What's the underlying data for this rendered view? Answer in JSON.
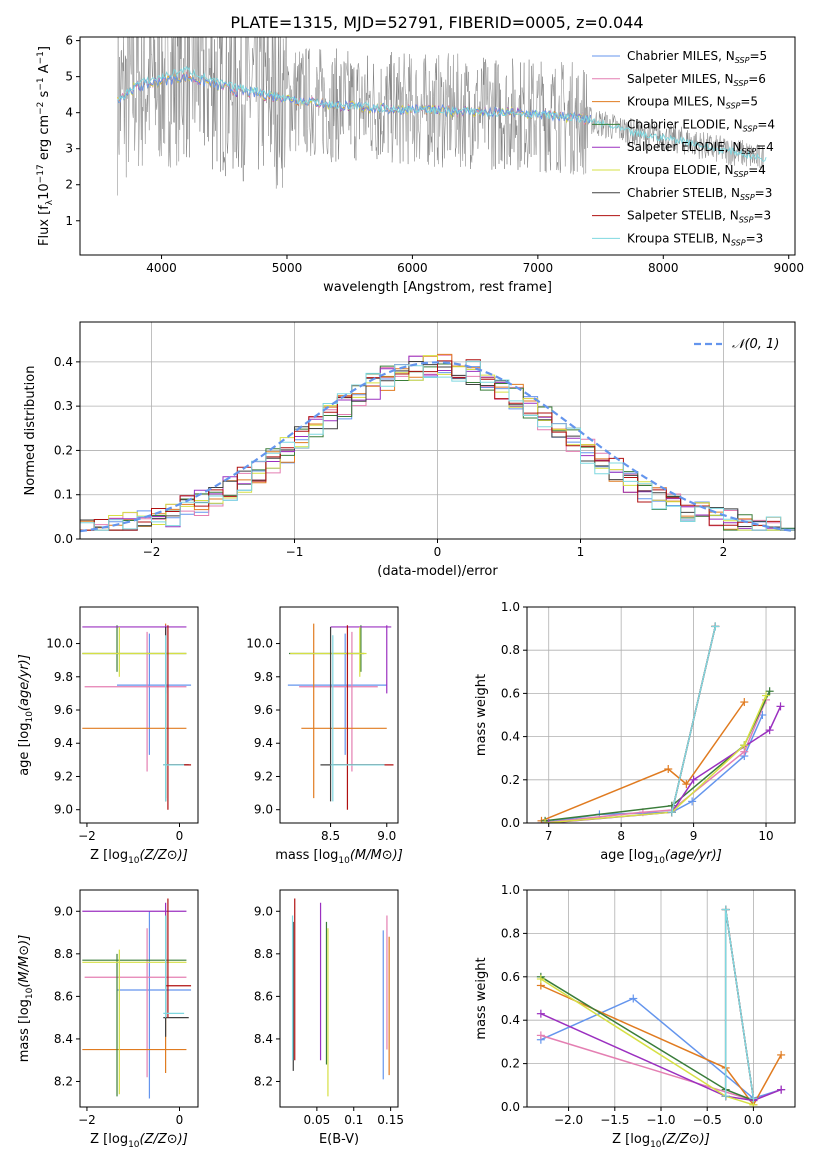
{
  "title": "PLATE=1315, MJD=52791, FIBERID=0005, z=0.044",
  "legend_labels": [
    "Chabrier MILES, N",
    "Salpeter MILES, N",
    "Kroupa MILES, N",
    "Chabrier ELODIE, N",
    "Salpeter ELODIE, N",
    "Kroupa ELODIE, N",
    "Chabrier STELIB, N",
    "Salpeter STELIB, N",
    "Kroupa STELIB, N"
  ],
  "legend_nssp": [
    "5",
    "6",
    "5",
    "4",
    "4",
    "4",
    "3",
    "3",
    "3"
  ],
  "legend_sub": "SSP",
  "colors": [
    "#6495ed",
    "#e47fb2",
    "#e07b20",
    "#3a7d3a",
    "#9b30c0",
    "#d6e044",
    "#404040",
    "#b01010",
    "#7fd8e0"
  ],
  "chart_data": [
    {
      "type": "line",
      "xlabel": "wavelength [Angstrom, rest frame]",
      "ylabel_parts": [
        "Flux [f",
        "λ",
        "10",
        "−17",
        " erg cm",
        "−2",
        " s",
        "−1",
        " A",
        "−1",
        "]"
      ],
      "xlim": [
        3350,
        9050
      ],
      "ylim": [
        0.05,
        6.1
      ],
      "xticks": [
        4000,
        5000,
        6000,
        7000,
        8000,
        9000
      ],
      "yticks": [
        1,
        2,
        3,
        4,
        5,
        6
      ],
      "data_wavelength": [
        3650,
        3800,
        4000,
        4200,
        4400,
        4600,
        4800,
        5000,
        5200,
        5400,
        5600,
        5800,
        6000,
        6200,
        6400,
        6600,
        6800,
        7000,
        7200,
        7400,
        7600,
        7800,
        8000,
        8200,
        8400,
        8600,
        8800
      ],
      "data_flux": [
        4.3,
        4.8,
        5.0,
        5.2,
        4.9,
        4.7,
        4.6,
        4.4,
        4.3,
        4.2,
        4.2,
        4.1,
        4.1,
        4.05,
        4.05,
        4.0,
        4.0,
        3.95,
        3.9,
        3.8,
        3.6,
        3.4,
        3.3,
        3.2,
        3.0,
        2.9,
        2.7
      ],
      "model_wavelength": [
        3650,
        3800,
        4000,
        4200,
        4400,
        4600,
        4800,
        5000,
        5200,
        5400,
        5600,
        5800,
        6000,
        6200,
        6400,
        6600,
        6800,
        7000,
        7200,
        7400
      ],
      "model_flux": [
        4.4,
        4.7,
        4.9,
        5.0,
        4.8,
        4.6,
        4.5,
        4.4,
        4.3,
        4.2,
        4.15,
        4.1,
        4.1,
        4.05,
        4.05,
        4.0,
        4.0,
        3.95,
        3.9,
        3.8
      ]
    },
    {
      "type": "line",
      "xlabel": "(data-model)/error",
      "ylabel": "Normed distribution",
      "xlim": [
        -2.5,
        2.5
      ],
      "ylim": [
        0,
        0.49
      ],
      "xticks": [
        -2,
        -1,
        0,
        1,
        2
      ],
      "yticks": [
        0.0,
        0.1,
        0.2,
        0.3,
        0.4
      ],
      "legend": "𝒩(0, 1)",
      "grid": true
    },
    {
      "type": "scatter",
      "xlabel": "Z [log10(Z/Z⊙)]",
      "ylabel": "age [log10(age/yr)]",
      "xlim": [
        -2.15,
        0.4
      ],
      "ylim": [
        8.92,
        10.22
      ],
      "xticks": [
        -2,
        0
      ],
      "yticks": [
        9.0,
        9.2,
        9.4,
        9.6,
        9.8,
        10.0
      ]
    },
    {
      "type": "scatter",
      "xlabel": "mass [log10(M/M⊙)]",
      "ylabel": "",
      "xlim": [
        8.05,
        9.1
      ],
      "ylim": [
        8.92,
        10.22
      ],
      "xticks": [
        8.5,
        9.0
      ],
      "yticks": [
        9.0,
        9.2,
        9.4,
        9.6,
        9.8,
        10.0
      ]
    },
    {
      "type": "line",
      "xlabel": "age [log10(age/yr)]",
      "ylabel": "mass weight",
      "xlim": [
        6.7,
        10.4
      ],
      "ylim": [
        0,
        1
      ],
      "xticks": [
        7,
        8,
        9,
        10
      ],
      "yticks": [
        0.0,
        0.2,
        0.4,
        0.6,
        0.8,
        1.0
      ],
      "grid": true
    },
    {
      "type": "scatter",
      "xlabel": "Z [log10(Z/Z⊙)]",
      "ylabel": "mass [log10(M/M⊙)]",
      "xlim": [
        -2.15,
        0.4
      ],
      "ylim": [
        8.08,
        9.1
      ],
      "xticks": [
        -2,
        0
      ],
      "yticks": [
        8.2,
        8.4,
        8.6,
        8.8,
        9.0
      ]
    },
    {
      "type": "scatter",
      "xlabel": "E(B-V)",
      "ylabel": "",
      "xlim": [
        0.0,
        0.16
      ],
      "ylim": [
        8.08,
        9.1
      ],
      "xticks": [
        0.05,
        0.1,
        0.15
      ],
      "yticks": [
        8.2,
        8.4,
        8.6,
        8.8,
        9.0
      ]
    },
    {
      "type": "line",
      "xlabel": "Z [log10(Z/Z⊙)]",
      "ylabel": "mass weight",
      "xlim": [
        -2.45,
        0.45
      ],
      "ylim": [
        0,
        1
      ],
      "xticks": [
        -2.0,
        -1.5,
        -1.0,
        -0.5,
        0.0
      ],
      "yticks": [
        0.0,
        0.2,
        0.4,
        0.6,
        0.8,
        1.0
      ],
      "grid": true
    }
  ],
  "mw_age": {
    "series": [
      {
        "c": 0,
        "x": [
          6.9,
          7.7,
          8.7,
          8.98,
          9.7,
          9.95
        ],
        "y": [
          0.0,
          0.04,
          0.05,
          0.1,
          0.31,
          0.5
        ]
      },
      {
        "c": 1,
        "x": [
          6.9,
          8.3,
          8.7,
          9.7,
          10.0
        ],
        "y": [
          0.0,
          0.05,
          0.06,
          0.33,
          0.57
        ]
      },
      {
        "c": 2,
        "x": [
          6.9,
          8.65,
          8.9,
          9.7
        ],
        "y": [
          0.01,
          0.25,
          0.18,
          0.56
        ]
      },
      {
        "c": 3,
        "x": [
          6.95,
          8.7,
          9.7,
          10.05
        ],
        "y": [
          0.01,
          0.08,
          0.36,
          0.61
        ]
      },
      {
        "c": 4,
        "x": [
          7.0,
          8.7,
          9.0,
          10.05,
          10.2
        ],
        "y": [
          0.0,
          0.05,
          0.2,
          0.43,
          0.54
        ]
      },
      {
        "c": 5,
        "x": [
          6.95,
          8.7,
          9.7,
          10.0
        ],
        "y": [
          0.0,
          0.05,
          0.36,
          0.59
        ]
      },
      {
        "c": 6,
        "x": [
          8.7,
          9.3
        ],
        "y": [
          0.05,
          0.91
        ]
      },
      {
        "c": 7,
        "x": [
          8.7,
          9.3
        ],
        "y": [
          0.05,
          0.91
        ]
      },
      {
        "c": 8,
        "x": [
          8.7,
          9.3
        ],
        "y": [
          0.05,
          0.91
        ]
      }
    ]
  },
  "mw_z": {
    "series": [
      {
        "c": 0,
        "x": [
          -2.3,
          -1.3,
          0.0,
          0.3
        ],
        "y": [
          0.31,
          0.5,
          0.04,
          0.08
        ]
      },
      {
        "c": 1,
        "x": [
          -2.3,
          0.0,
          0.3
        ],
        "y": [
          0.33,
          0.03,
          0.08
        ]
      },
      {
        "c": 2,
        "x": [
          -2.3,
          -0.3,
          0.0,
          0.3
        ],
        "y": [
          0.56,
          0.18,
          0.01,
          0.24
        ]
      },
      {
        "c": 3,
        "x": [
          -2.3,
          -0.3,
          0.0
        ],
        "y": [
          0.6,
          0.08,
          0.03
        ]
      },
      {
        "c": 4,
        "x": [
          -2.3,
          -0.3,
          0.0,
          0.3
        ],
        "y": [
          0.43,
          0.05,
          0.03,
          0.08
        ]
      },
      {
        "c": 5,
        "x": [
          -2.3,
          -0.3,
          0.0
        ],
        "y": [
          0.59,
          0.05,
          0.01
        ]
      },
      {
        "c": 6,
        "x": [
          -0.3,
          -0.3,
          0.0
        ],
        "y": [
          0.05,
          0.91,
          0.04
        ]
      },
      {
        "c": 7,
        "x": [
          -0.3,
          -0.3,
          0.0
        ],
        "y": [
          0.05,
          0.91,
          0.04
        ]
      },
      {
        "c": 8,
        "x": [
          -0.3,
          -0.3,
          0.0
        ],
        "y": [
          0.05,
          0.91,
          0.04
        ]
      }
    ]
  },
  "errorbars_age": [
    {
      "c": 0,
      "z": -0.65,
      "zerr": [
        -1.35,
        0.25
      ],
      "age": 9.75,
      "ageerr": [
        9.33,
        10.06
      ],
      "mass": 8.63,
      "masserr": [
        8.12,
        9.0
      ],
      "ebv": 0.14,
      "ebverr": [
        8.21,
        8.91
      ]
    },
    {
      "c": 1,
      "z": -0.7,
      "zerr": [
        -2.05,
        0.15
      ],
      "age": 9.74,
      "ageerr": [
        9.23,
        10.07
      ],
      "mass": 8.69,
      "masserr": [
        8.22,
        8.92
      ],
      "ebv": 0.145,
      "ebverr": [
        8.35,
        8.98
      ]
    },
    {
      "c": 2,
      "z": -0.3,
      "zerr": [
        -2.1,
        0.15
      ],
      "age": 9.49,
      "ageerr": [
        9.07,
        10.12
      ],
      "mass": 8.35,
      "masserr": [
        8.24,
        9.0
      ],
      "ebv": 0.148,
      "ebverr": [
        8.23,
        8.88
      ]
    },
    {
      "c": 3,
      "z": -1.35,
      "zerr": [
        -2.1,
        0.15
      ],
      "age": 9.94,
      "ageerr": [
        9.83,
        10.11
      ],
      "mass": 8.77,
      "masserr": [
        8.13,
        8.8
      ],
      "ebv": 0.063,
      "ebverr": [
        8.28,
        8.95
      ]
    },
    {
      "c": 4,
      "z": -0.3,
      "zerr": [
        -2.1,
        0.15
      ],
      "age": 10.1,
      "ageerr": [
        9.7,
        10.11
      ],
      "mass": 9.0,
      "masserr": [
        8.5,
        9.04
      ],
      "ebv": 0.055,
      "ebverr": [
        8.3,
        9.04
      ]
    },
    {
      "c": 5,
      "z": -1.3,
      "zerr": [
        -2.1,
        0.15
      ],
      "age": 9.94,
      "ageerr": [
        9.8,
        10.1
      ],
      "mass": 8.76,
      "masserr": [
        8.14,
        8.82
      ],
      "ebv": 0.065,
      "ebverr": [
        8.13,
        8.92
      ]
    },
    {
      "c": 6,
      "z": -0.3,
      "zerr": [
        -0.35,
        0.2
      ],
      "age": 9.27,
      "ageerr": [
        9.05,
        10.1
      ],
      "mass": 8.5,
      "masserr": [
        8.41,
        8.98
      ],
      "ebv": 0.018,
      "ebverr": [
        8.25,
        8.95
      ]
    },
    {
      "c": 7,
      "z": -0.25,
      "zerr": [
        -0.3,
        0.25
      ],
      "age": 9.27,
      "ageerr": [
        9.0,
        10.11
      ],
      "mass": 8.65,
      "masserr": [
        8.5,
        9.06
      ],
      "ebv": 0.02,
      "ebverr": [
        8.3,
        9.06
      ]
    },
    {
      "c": 8,
      "z": -0.3,
      "zerr": [
        -0.35,
        0.1
      ],
      "age": 9.27,
      "ageerr": [
        9.05,
        10.05
      ],
      "mass": 8.52,
      "masserr": [
        8.5,
        8.98
      ],
      "ebv": 0.017,
      "ebverr": [
        8.3,
        8.98
      ]
    }
  ]
}
